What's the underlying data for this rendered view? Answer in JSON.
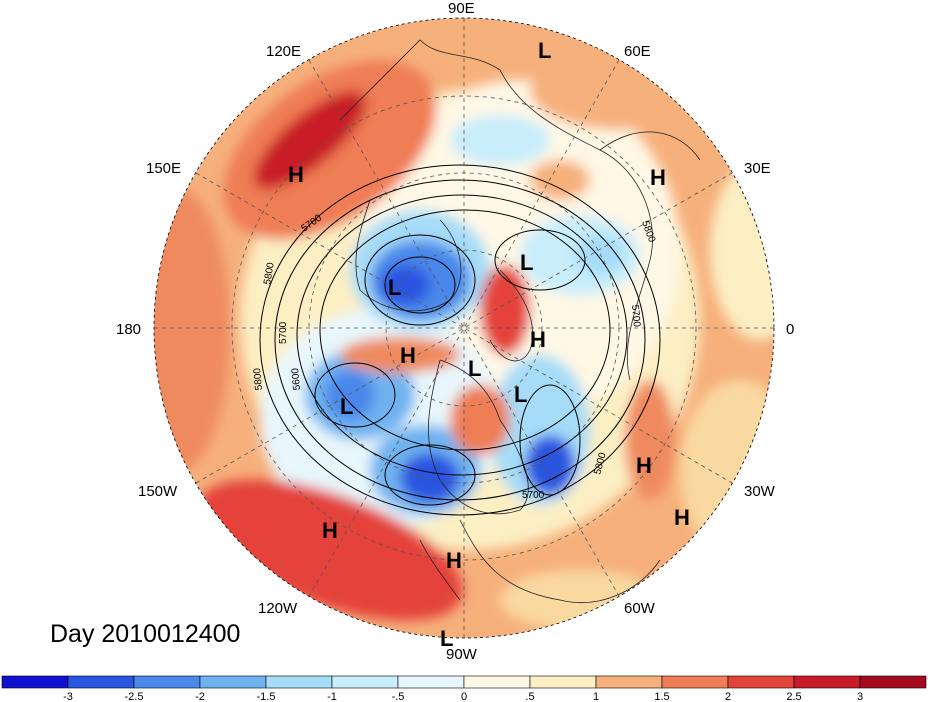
{
  "title": "Day 2010012400",
  "colors": {
    "cold3": "#1010d0",
    "cold25": "#2a55e0",
    "cold2": "#4a88ea",
    "cold15": "#6fb2f0",
    "cold1": "#a6dcf8",
    "cold05": "#d6f1fb",
    "neutral_lo": "#fff8e6",
    "neutral_hi": "#fcefc4",
    "warm05": "#f9d9a0",
    "warm1": "#f6b07c",
    "warm15": "#ef8a5e",
    "warm2": "#e95a42",
    "warm25": "#d7252c",
    "warm3": "#a30a1f"
  },
  "lon_labels": [
    {
      "text": "90E",
      "id": "lon-90e"
    },
    {
      "text": "120E",
      "id": "lon-120e"
    },
    {
      "text": "60E",
      "id": "lon-60e"
    },
    {
      "text": "150E",
      "id": "lon-150e"
    },
    {
      "text": "30E",
      "id": "lon-30e"
    },
    {
      "text": "180",
      "id": "lon-180"
    },
    {
      "text": "0",
      "id": "lon-0"
    },
    {
      "text": "150W",
      "id": "lon-150w"
    },
    {
      "text": "30W",
      "id": "lon-30w"
    },
    {
      "text": "120W",
      "id": "lon-120w"
    },
    {
      "text": "60W",
      "id": "lon-60w"
    },
    {
      "text": "90W",
      "id": "lon-90w"
    }
  ],
  "pressure_markers": [
    {
      "text": "L"
    },
    {
      "text": "H"
    },
    {
      "text": "H"
    },
    {
      "text": "L"
    },
    {
      "text": "L"
    },
    {
      "text": "H"
    },
    {
      "text": "H"
    },
    {
      "text": "L"
    },
    {
      "text": "L"
    },
    {
      "text": "L"
    },
    {
      "text": "H"
    },
    {
      "text": "H"
    },
    {
      "text": "H"
    },
    {
      "text": "H"
    },
    {
      "text": "L"
    }
  ],
  "contour_labels": [
    "5700",
    "5800",
    "5800",
    "5700",
    "5600",
    "5800",
    "5700",
    "5800",
    "5700"
  ],
  "colorbar": {
    "ticks": [
      "-3",
      "-2.5",
      "-2",
      "-1.5",
      "-1",
      "-.5",
      "0",
      ".5",
      "1",
      "1.5",
      "2",
      "2.5",
      "3"
    ],
    "bins": [
      "#1010d0",
      "#2a55e0",
      "#4a88ea",
      "#6fb2f0",
      "#a6dcf8",
      "#c8edfb",
      "#e8f7fc",
      "#fff8e6",
      "#fcefc4",
      "#f6b07c",
      "#ef7d55",
      "#e4433a",
      "#c81a28",
      "#a30a1f"
    ]
  }
}
